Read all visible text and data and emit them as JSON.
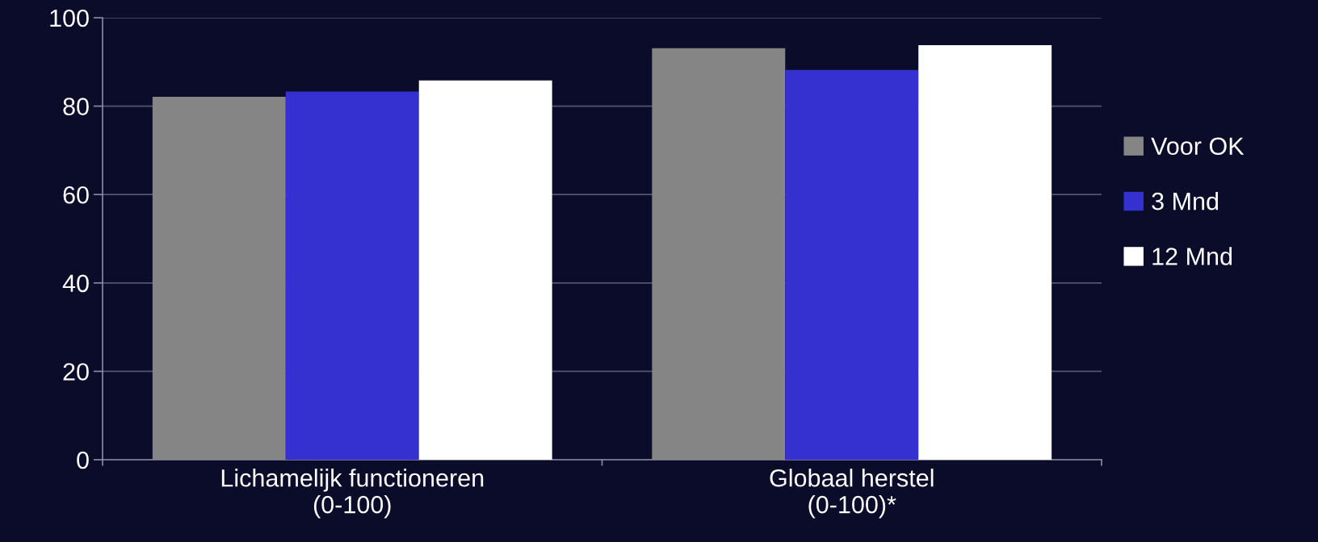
{
  "chart_data": {
    "type": "bar",
    "categories": [
      "Lichamelijk functioneren\n(0-100)",
      "Globaal herstel\n(0-100)*"
    ],
    "series": [
      {
        "name": "Voor OK",
        "color": "#858585",
        "values": [
          82.1,
          93.1
        ]
      },
      {
        "name": "3 Mnd",
        "color": "#3530d0",
        "values": [
          83.3,
          88.2
        ]
      },
      {
        "name": "12 Mnd",
        "color": "#ffffff",
        "values": [
          85.8,
          93.8
        ]
      }
    ],
    "ylim": [
      0,
      100
    ],
    "yticks": [
      0,
      20,
      40,
      60,
      80,
      100
    ],
    "grid": "y",
    "legend": "right"
  }
}
